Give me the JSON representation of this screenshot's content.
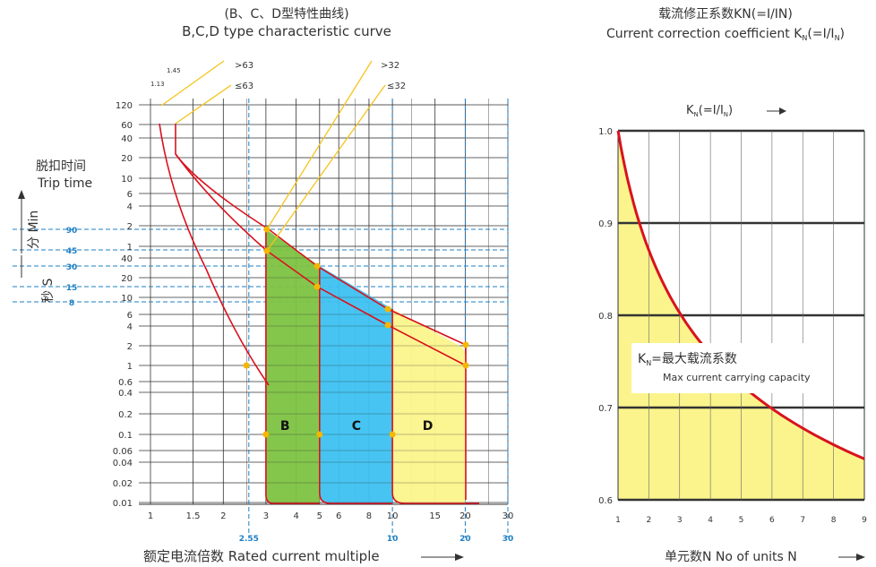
{
  "chart_data": [
    {
      "type": "line",
      "title": "(B、C、D型特性曲线)",
      "subtitle": "B,C,D type characteristic curve",
      "ylabel_cn": "脱扣时间",
      "ylabel_en": "Trip time",
      "xlabel": "额定电流倍数 Rated current multiple",
      "x_scale": "log",
      "y_scale": "log",
      "x_ticks": [
        "1",
        "1.5",
        "2",
        "3",
        "4",
        "5",
        "6",
        "8",
        "10",
        "15",
        "20",
        "30"
      ],
      "x_ticks_blue": [
        "2.55",
        "10",
        "20",
        "30"
      ],
      "y_ticks_min": [
        "120",
        "60",
        "40",
        "20",
        "10",
        "6",
        "4",
        "2",
        "1"
      ],
      "y_ticks_sec": [
        "40",
        "20",
        "10",
        "6",
        "4",
        "2",
        "1",
        "0.6",
        "0.4",
        "0.2",
        "0.1",
        "0.06",
        "0.04",
        "0.02",
        "0.01"
      ],
      "y_marks_blue": [
        "90",
        "45",
        "30",
        "15",
        "8"
      ],
      "min_unit_label": "分 Min",
      "sec_unit_label": "秒 S",
      "top_labels": [
        "1.13",
        "1.45"
      ],
      "annotations": [
        ">63",
        "≤63",
        ">32",
        "≤32"
      ],
      "regions": [
        {
          "name": "B",
          "x_range": [
            3,
            5
          ],
          "color": "#7dc242"
        },
        {
          "name": "C",
          "x_range": [
            5,
            10
          ],
          "color": "#3dc1f0"
        },
        {
          "name": "D",
          "x_range": [
            10,
            20
          ],
          "color": "#fbf48c"
        }
      ]
    },
    {
      "type": "line",
      "title": "载流修正系数KN(=I/IN)",
      "subtitle_prefix": "Current correction coefficient K",
      "subtitle_mid": "(=I/I",
      "subtitle_suffix": ")",
      "sub_n": "N",
      "axis_top_prefix": "K",
      "axis_top_mid": "(=I/I",
      "axis_top_suffix": ")",
      "arrow": "⟶",
      "xlabel": "单元数N  No of units N",
      "x": [
        1,
        2,
        3,
        4,
        5,
        6,
        7,
        8,
        9
      ],
      "x_ticks": [
        "1",
        "2",
        "3",
        "4",
        "5",
        "6",
        "7",
        "8",
        "9"
      ],
      "y_ticks": [
        "1.0",
        "0.9",
        "0.8",
        "0.7",
        "0.6"
      ],
      "ylim": [
        0.6,
        1.0
      ],
      "xlim": [
        1,
        9
      ],
      "series": [
        {
          "values": [
            1.0,
            0.9,
            0.836,
            0.79,
            0.752,
            0.72,
            0.693,
            0.669,
            0.648
          ]
        }
      ],
      "legend_prefix": "K",
      "legend_main": "=最大载流系数",
      "legend_en": "Max current carrying capacity",
      "line_color": "#d9121e",
      "fill_color": "#fbf48c"
    }
  ]
}
